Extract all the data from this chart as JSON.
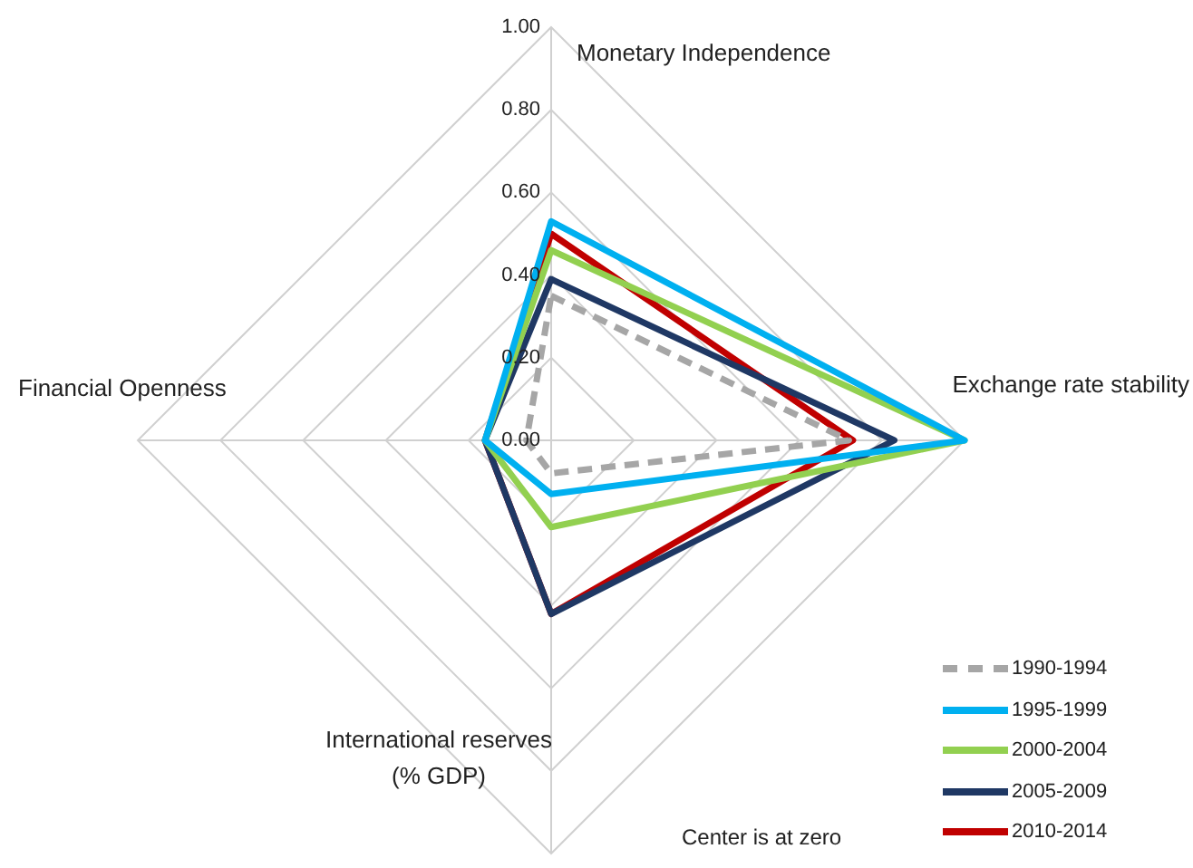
{
  "chart_data": {
    "type": "radar",
    "categories": [
      "Monetary Independence",
      "Exchange rate stability",
      "International reserves (% GDP)",
      "Financial Openness"
    ],
    "series": [
      {
        "name": "1990-1994",
        "color": "#a6a6a6",
        "line_style": "dashed",
        "values": [
          0.35,
          0.72,
          0.08,
          0.06
        ]
      },
      {
        "name": "1995-1999",
        "color": "#00b0f0",
        "values": [
          0.53,
          1.0,
          0.13,
          0.16
        ]
      },
      {
        "name": "2000-2004",
        "color": "#92d050",
        "values": [
          0.46,
          1.0,
          0.21,
          0.16
        ]
      },
      {
        "name": "2005-2009",
        "color": "#1f3864",
        "values": [
          0.39,
          0.83,
          0.42,
          0.16
        ]
      },
      {
        "name": "2010-2014",
        "color": "#c00000",
        "values": [
          0.5,
          0.73,
          0.42,
          0.16
        ]
      }
    ],
    "ylim": [
      0,
      1
    ],
    "yticks": [
      {
        "value": 0,
        "label": "0.00"
      },
      {
        "value": 0.2,
        "label": "0.20"
      },
      {
        "value": 0.4,
        "label": "0.40"
      },
      {
        "value": 0.6,
        "label": "0.60"
      },
      {
        "value": 0.8,
        "label": "0.80"
      },
      {
        "value": 1,
        "label": "1.00"
      }
    ],
    "grid": true,
    "legend": "bottom right",
    "marker": "none",
    "line_style": "solid",
    "annotations": [
      "Center is at zero"
    ]
  }
}
